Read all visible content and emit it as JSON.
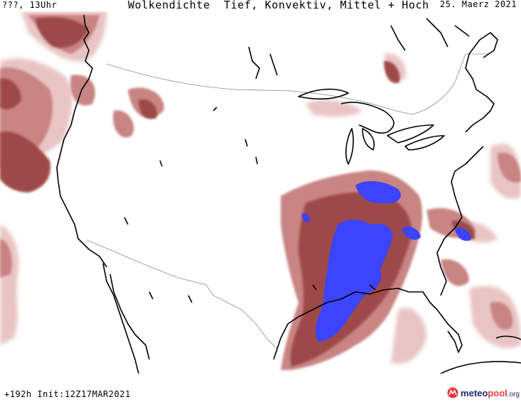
{
  "header": {
    "location_time": "???, 13Uhr",
    "title": "Wolkendichte  Tief, Konvektiv, Mittel + Hoch",
    "date": "25. Maerz 2021"
  },
  "footer": {
    "forecast_info": "+192h Init:12Z17MAR2021",
    "logo_part1": "meteo",
    "logo_part2": "pool",
    "logo_part3": ".org"
  },
  "colors": {
    "background": "#ffffff",
    "cloud_light": "#e9c4c4",
    "cloud_medium": "#c98484",
    "cloud_dark": "#9e4a4a",
    "convective": "#3c44ff",
    "coastline": "#000000",
    "border": "#8a8a8a"
  },
  "icons": [
    "meteopool-logo-icon"
  ]
}
